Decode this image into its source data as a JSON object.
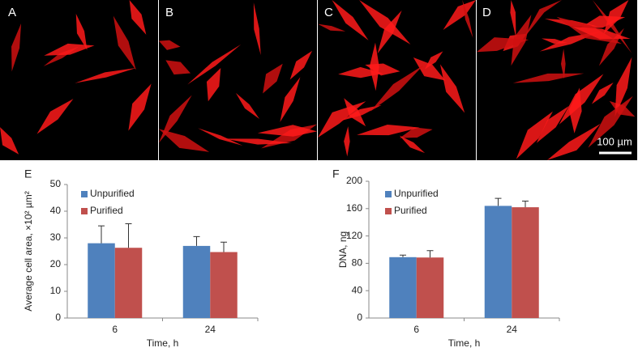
{
  "panels": [
    "A",
    "B",
    "C",
    "D"
  ],
  "scale_bar": "100 µm",
  "chart_data": [
    {
      "type": "bar",
      "panel_label": "E",
      "y_label": "Average cell area, ×10² µm²",
      "x_label": "Time, h",
      "categories": [
        "6",
        "24"
      ],
      "ylim": [
        0,
        50
      ],
      "yticks": [
        0,
        10,
        20,
        30,
        40,
        50
      ],
      "grid": false,
      "series": [
        {
          "name": "Unpurified",
          "color": "#4f81bd",
          "values": [
            28,
            27
          ],
          "errors": [
            6.5,
            3.5
          ]
        },
        {
          "name": "Purified",
          "color": "#c0504d",
          "values": [
            26.3,
            24.7
          ],
          "errors": [
            9,
            3.7
          ]
        }
      ]
    },
    {
      "type": "bar",
      "panel_label": "F",
      "y_label": "DNA, ng",
      "x_label": "Time, h",
      "categories": [
        "6",
        "24"
      ],
      "ylim": [
        0,
        200
      ],
      "yticks": [
        0,
        40,
        80,
        120,
        160,
        200
      ],
      "grid": false,
      "series": [
        {
          "name": "Unpurified",
          "color": "#4f81bd",
          "values": [
            89,
            164
          ],
          "errors": [
            3,
            11
          ]
        },
        {
          "name": "Purified",
          "color": "#c0504d",
          "values": [
            88.5,
            162
          ],
          "errors": [
            10,
            9
          ]
        }
      ]
    }
  ]
}
